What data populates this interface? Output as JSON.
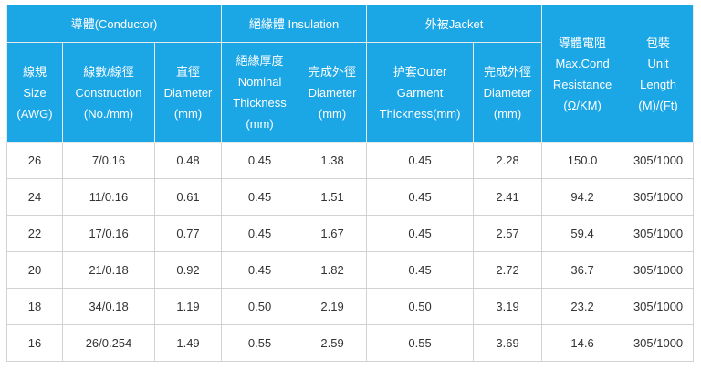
{
  "groups": {
    "conductor": "導體(Conductor)",
    "insulation": "絕緣體 Insulation",
    "jacket": "外被Jacket",
    "resistance": [
      "導體電阻",
      "Max.Cond",
      "Resistance",
      "(Ω/KM)"
    ],
    "unit_length": [
      "包裝",
      "Unit",
      "Length",
      "(M)/(Ft)"
    ]
  },
  "subheaders": {
    "size": [
      "線規",
      "Size",
      "(AWG)"
    ],
    "construction": [
      "線數/線徑",
      "Construction",
      "(No./mm)"
    ],
    "diameter": [
      "直徑",
      "Diameter",
      "(mm)"
    ],
    "nominal_thickness": [
      "絕緣厚度",
      "Nominal",
      "Thickness",
      "(mm)"
    ],
    "insulation_od": [
      "完成外徑",
      "Diameter",
      "(mm)"
    ],
    "outer_thickness": [
      "护套Outer",
      "Garment",
      "Thickness(mm)"
    ],
    "jacket_od": [
      "完成外徑",
      "Diameter",
      "(mm)"
    ]
  },
  "rows": [
    [
      "26",
      "7/0.16",
      "0.48",
      "0.45",
      "1.38",
      "0.45",
      "2.28",
      "150.0",
      "305/1000"
    ],
    [
      "24",
      "11/0.16",
      "0.61",
      "0.45",
      "1.51",
      "0.45",
      "2.41",
      "94.2",
      "305/1000"
    ],
    [
      "22",
      "17/0.16",
      "0.77",
      "0.45",
      "1.67",
      "0.45",
      "2.57",
      "59.4",
      "305/1000"
    ],
    [
      "20",
      "21/0.18",
      "0.92",
      "0.45",
      "1.82",
      "0.45",
      "2.72",
      "36.7",
      "305/1000"
    ],
    [
      "18",
      "34/0.18",
      "1.19",
      "0.50",
      "2.19",
      "0.50",
      "3.19",
      "23.2",
      "305/1000"
    ],
    [
      "16",
      "26/0.254",
      "1.49",
      "0.55",
      "2.59",
      "0.55",
      "3.69",
      "14.6",
      "305/1000"
    ]
  ]
}
